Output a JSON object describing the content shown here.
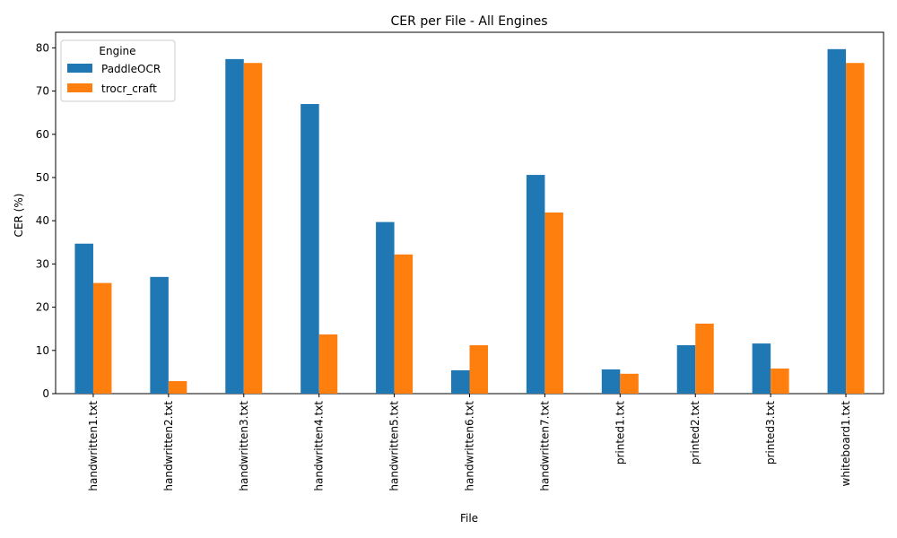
{
  "chart_data": {
    "type": "bar",
    "title": "CER per File - All Engines",
    "xlabel": "File",
    "ylabel": "CER (%)",
    "ylim": [
      0,
      83.6
    ],
    "yticks": [
      0,
      10,
      20,
      30,
      40,
      50,
      60,
      70,
      80
    ],
    "grid": false,
    "legend": {
      "title": "Engine",
      "position": "top-left"
    },
    "categories": [
      "handwritten1.txt",
      "handwritten2.txt",
      "handwritten3.txt",
      "handwritten4.txt",
      "handwritten5.txt",
      "handwritten6.txt",
      "handwritten7.txt",
      "printed1.txt",
      "printed2.txt",
      "printed3.txt",
      "whiteboard1.txt"
    ],
    "series": [
      {
        "name": "PaddleOCR",
        "color": "#1f77b4",
        "values": [
          34.7,
          27.0,
          77.4,
          67.0,
          39.7,
          5.4,
          50.6,
          5.6,
          11.2,
          11.6,
          79.7
        ]
      },
      {
        "name": "trocr_craft",
        "color": "#ff7f0e",
        "values": [
          25.6,
          2.9,
          76.5,
          13.7,
          32.2,
          11.2,
          41.9,
          4.6,
          16.2,
          5.8,
          76.5
        ]
      }
    ]
  }
}
